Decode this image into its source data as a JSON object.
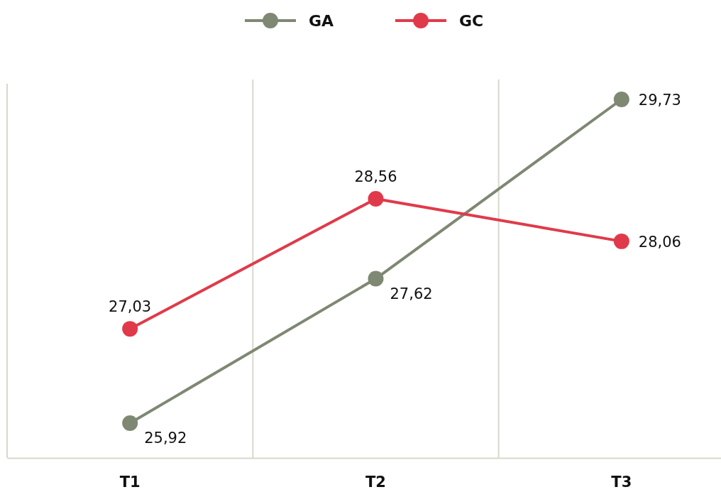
{
  "chart_data": {
    "type": "line",
    "categories": [
      "T1",
      "T2",
      "T3"
    ],
    "series": [
      {
        "name": "GA",
        "color": "#7e8872",
        "values": [
          25.92,
          27.62,
          29.73
        ],
        "value_labels": [
          "25,92",
          "27,62",
          "29,73"
        ]
      },
      {
        "name": "GC",
        "color": "#e03a4a",
        "values": [
          27.03,
          28.56,
          28.06
        ],
        "value_labels": [
          "27,03",
          "28,56",
          "28,06"
        ]
      }
    ],
    "marker": "circle",
    "line_style": "solid",
    "legend": "top",
    "grid": "x"
  }
}
